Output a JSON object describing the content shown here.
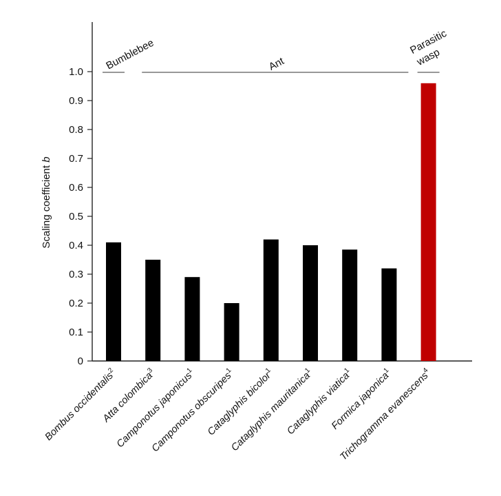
{
  "chart_data": {
    "type": "bar",
    "ylabel_prefix": "Scaling coefficient ",
    "ylabel_var": "b",
    "ylim": [
      0,
      1.0
    ],
    "yticks": [
      "0",
      "0.1",
      "0.2",
      "0.3",
      "0.4",
      "0.5",
      "0.6",
      "0.7",
      "0.8",
      "0.9",
      "1.0"
    ],
    "categories": [
      {
        "name": "Bombus occidentalis",
        "sup": "2"
      },
      {
        "name": "Atta colombica",
        "sup": "3"
      },
      {
        "name": "Camponotus japonicus",
        "sup": "1"
      },
      {
        "name": "Camponotus obscuripes",
        "sup": "1"
      },
      {
        "name": "Cataglyphis bicolor",
        "sup": "1"
      },
      {
        "name": "Cataglyphis mauritanica",
        "sup": "1"
      },
      {
        "name": "Cataglyphis viatica",
        "sup": "1"
      },
      {
        "name": "Formica japonica",
        "sup": "1"
      },
      {
        "name": "Trichogramma evanescens",
        "sup": "4"
      }
    ],
    "values": [
      0.41,
      0.35,
      0.29,
      0.2,
      0.42,
      0.4,
      0.385,
      0.32,
      0.96
    ],
    "bar_colors": [
      "#000000",
      "#000000",
      "#000000",
      "#000000",
      "#000000",
      "#000000",
      "#000000",
      "#000000",
      "#c00000"
    ],
    "groups": [
      {
        "lines": [
          "Bumblebee"
        ],
        "start": 0,
        "end": 0,
        "label_rotated": true
      },
      {
        "lines": [
          "Ant"
        ],
        "start": 1,
        "end": 7,
        "label_rotated": true
      },
      {
        "lines": [
          "Parasitic",
          "wasp"
        ],
        "start": 8,
        "end": 8,
        "label_rotated": true
      }
    ],
    "grid": false,
    "legend": "none"
  }
}
